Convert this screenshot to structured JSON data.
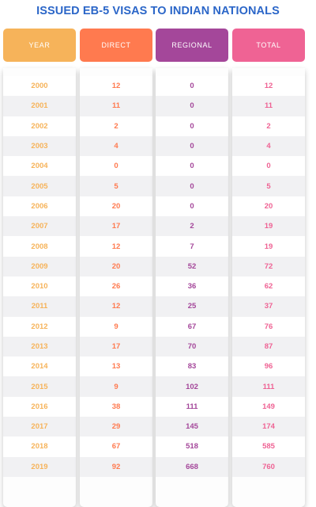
{
  "title": "ISSUED EB-5 VISAS TO INDIAN NATIONALS",
  "colors": {
    "title": "#2b66c8",
    "year": "#f6b35a",
    "direct": "#ff7a4f",
    "regional": "#a4479a",
    "total": "#ef6394"
  },
  "headers": {
    "year": "YEAR",
    "direct": "DIRECT",
    "regional": "REGIONAL",
    "total": "TOTAL"
  },
  "rows": [
    {
      "year": "2000",
      "direct": "12",
      "regional": "0",
      "total": "12"
    },
    {
      "year": "2001",
      "direct": "11",
      "regional": "0",
      "total": "11"
    },
    {
      "year": "2002",
      "direct": "2",
      "regional": "0",
      "total": "2"
    },
    {
      "year": "2003",
      "direct": "4",
      "regional": "0",
      "total": "4"
    },
    {
      "year": "2004",
      "direct": "0",
      "regional": "0",
      "total": "0"
    },
    {
      "year": "2005",
      "direct": "5",
      "regional": "0",
      "total": "5"
    },
    {
      "year": "2006",
      "direct": "20",
      "regional": "0",
      "total": "20"
    },
    {
      "year": "2007",
      "direct": "17",
      "regional": "2",
      "total": "19"
    },
    {
      "year": "2008",
      "direct": "12",
      "regional": "7",
      "total": "19"
    },
    {
      "year": "2009",
      "direct": "20",
      "regional": "52",
      "total": "72"
    },
    {
      "year": "2010",
      "direct": "26",
      "regional": "36",
      "total": "62"
    },
    {
      "year": "2011",
      "direct": "12",
      "regional": "25",
      "total": "37"
    },
    {
      "year": "2012",
      "direct": "9",
      "regional": "67",
      "total": "76"
    },
    {
      "year": "2013",
      "direct": "17",
      "regional": "70",
      "total": "87"
    },
    {
      "year": "2014",
      "direct": "13",
      "regional": "83",
      "total": "96"
    },
    {
      "year": "2015",
      "direct": "9",
      "regional": "102",
      "total": "111"
    },
    {
      "year": "2016",
      "direct": "38",
      "regional": "111",
      "total": "149"
    },
    {
      "year": "2017",
      "direct": "29",
      "regional": "145",
      "total": "174"
    },
    {
      "year": "2018",
      "direct": "67",
      "regional": "518",
      "total": "585"
    },
    {
      "year": "2019",
      "direct": "92",
      "regional": "668",
      "total": "760"
    }
  ]
}
